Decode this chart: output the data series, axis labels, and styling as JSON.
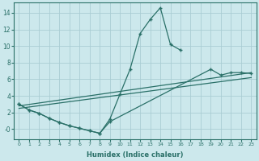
{
  "xlabel": "Humidex (Indice chaleur)",
  "bg_color": "#cce8ec",
  "grid_color": "#aacdd4",
  "line_color": "#2a7068",
  "xlim": [
    -0.5,
    23.5
  ],
  "ylim": [
    -1.2,
    15.2
  ],
  "xticks": [
    0,
    1,
    2,
    3,
    4,
    5,
    6,
    7,
    8,
    9,
    10,
    11,
    12,
    13,
    14,
    15,
    16,
    17,
    18,
    19,
    20,
    21,
    22,
    23
  ],
  "yticks": [
    0,
    2,
    4,
    6,
    8,
    10,
    12,
    14
  ],
  "ytick_labels": [
    "-0",
    "2",
    "4",
    "6",
    "8",
    "10",
    "12",
    "14"
  ],
  "series1_x": [
    0,
    1,
    2,
    3,
    4,
    5,
    6,
    7,
    8,
    9,
    10,
    11,
    12,
    13,
    14,
    15,
    16
  ],
  "series1_y": [
    3.0,
    2.3,
    1.9,
    1.3,
    0.8,
    0.4,
    0.1,
    -0.2,
    -0.5,
    1.2,
    4.2,
    7.2,
    11.5,
    13.2,
    14.6,
    10.2,
    9.5
  ],
  "series2_x": [
    0,
    1,
    2,
    3,
    4,
    5,
    6,
    7,
    8,
    9,
    19,
    20,
    21,
    22,
    23
  ],
  "series2_y": [
    3.0,
    2.3,
    1.9,
    1.3,
    0.8,
    0.4,
    0.1,
    -0.2,
    -0.5,
    0.9,
    7.2,
    6.5,
    6.8,
    6.8,
    6.7
  ],
  "line3_x": [
    0,
    23
  ],
  "line3_y": [
    2.8,
    6.8
  ],
  "line4_x": [
    0,
    23
  ],
  "line4_y": [
    2.5,
    6.2
  ]
}
